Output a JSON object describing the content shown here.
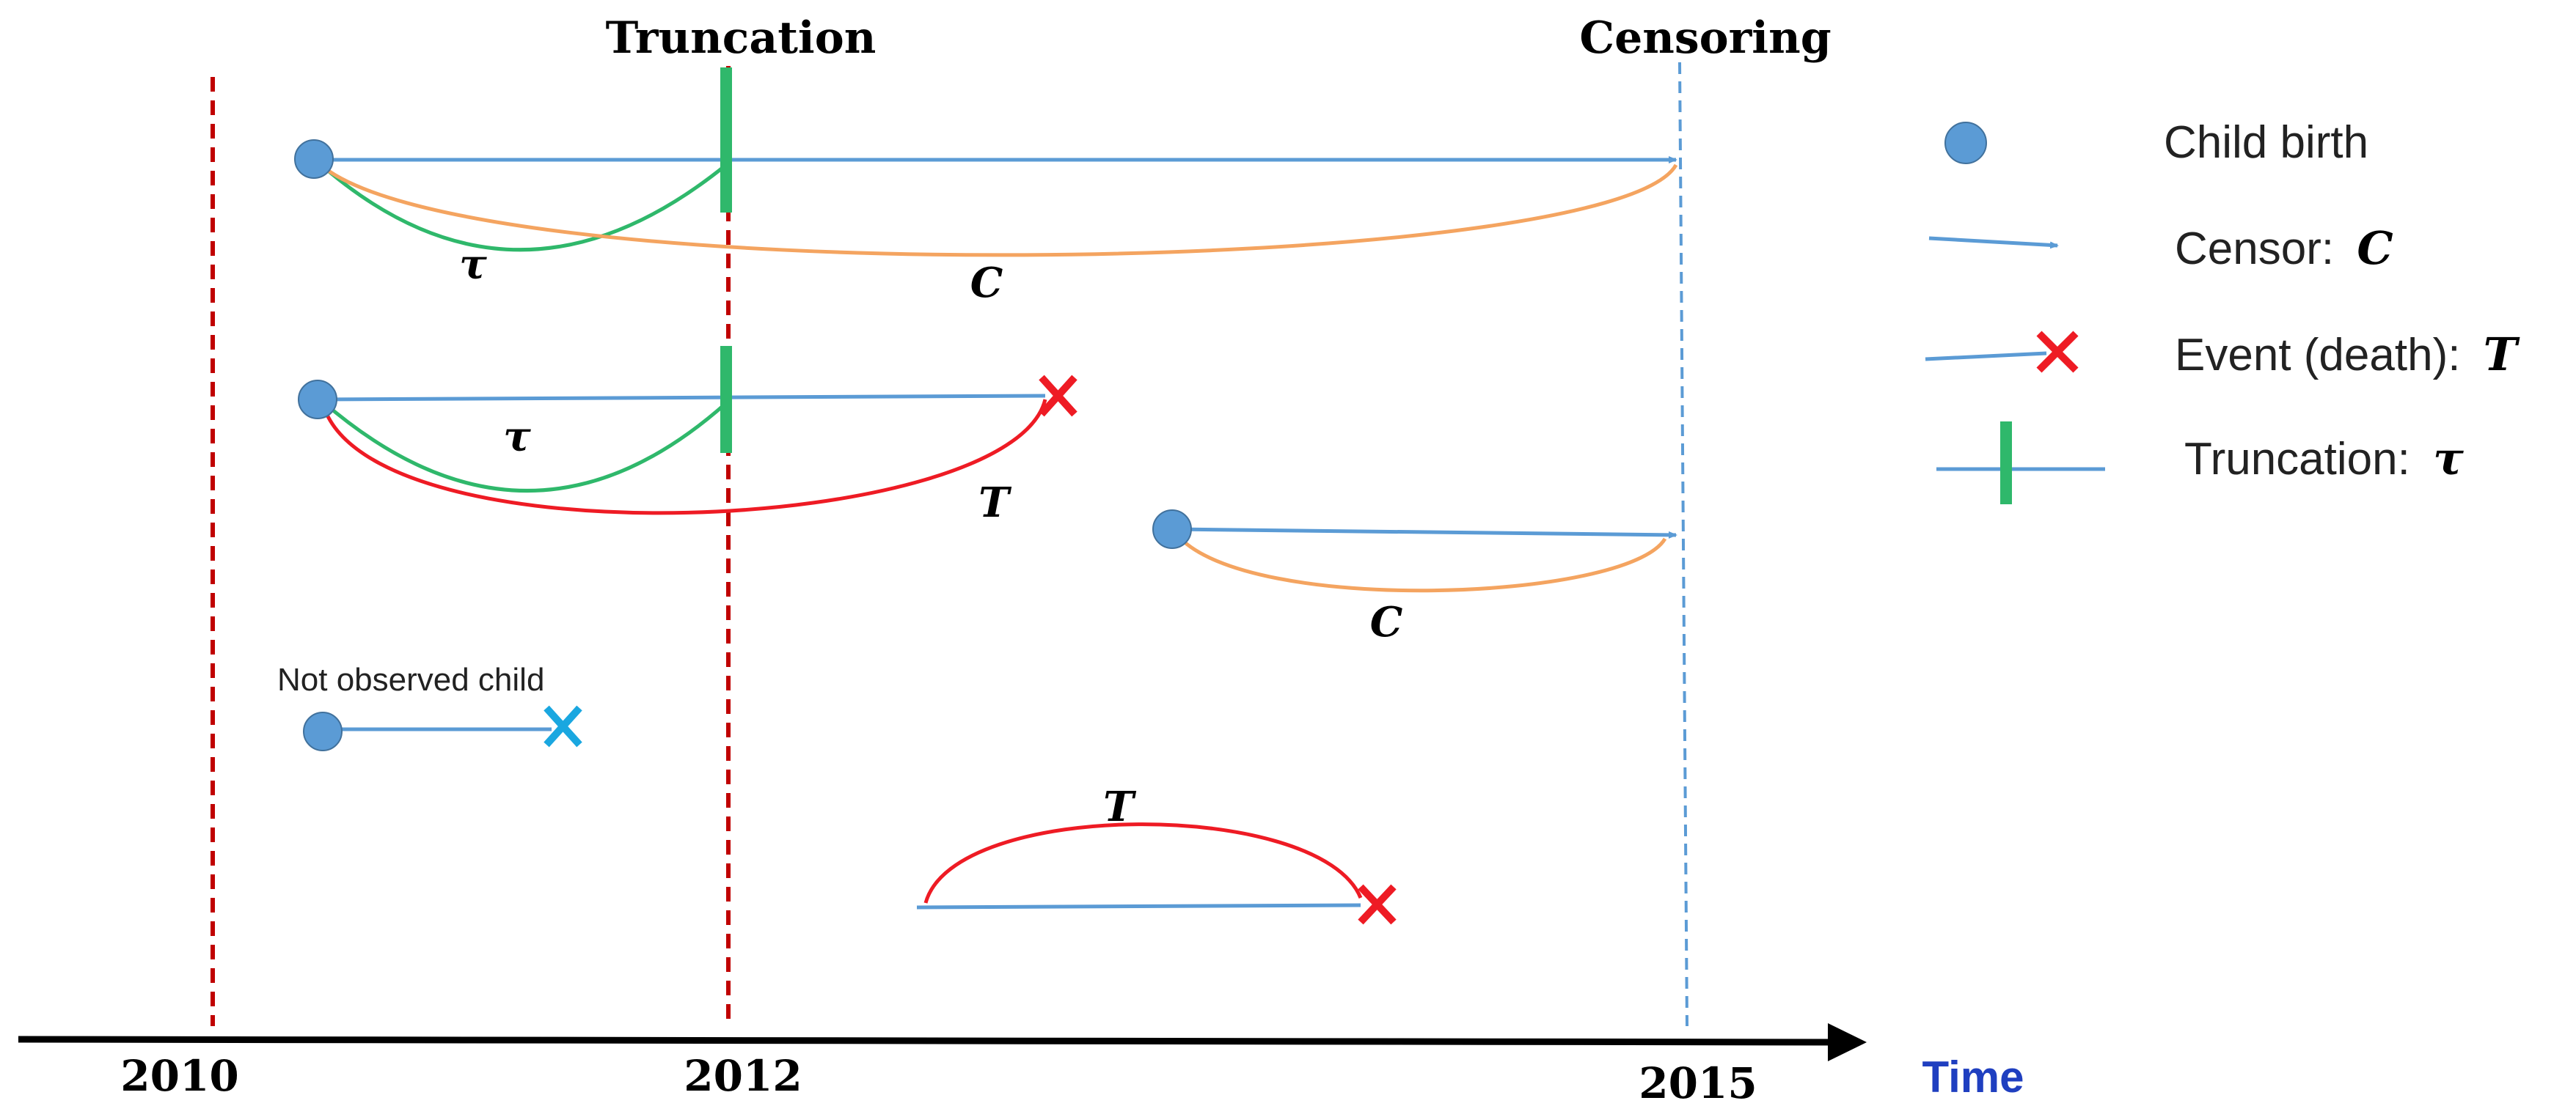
{
  "colors": {
    "blue": "#5b9bd5",
    "orange": "#f4a460",
    "green": "#2fb86b",
    "red": "#ee1b24",
    "dark_red": "#c00000",
    "light_blue_dash": "#5b9bd5",
    "cyan_cross": "#1aa7e0",
    "time_label": "#1f3fc0",
    "axis": "#000000"
  },
  "headers": {
    "truncation": "Truncation",
    "censoring": "Censoring"
  },
  "axis": {
    "ticks": [
      "2010",
      "2012",
      "2015"
    ],
    "time_label": "Time"
  },
  "curve_labels": {
    "row1_tau": "τ",
    "row1_c": "C",
    "row2_tau": "τ",
    "row2_t": "T",
    "row3_c": "C",
    "row5_t": "T"
  },
  "annotations": {
    "not_observed": "Not observed child"
  },
  "legend": {
    "child_birth": "Child birth",
    "censor_prefix": "Censor:",
    "censor_symbol": "C",
    "event_prefix": "Event (death):",
    "event_symbol": "T",
    "truncation_prefix": "Truncation:",
    "truncation_symbol": "τ"
  }
}
